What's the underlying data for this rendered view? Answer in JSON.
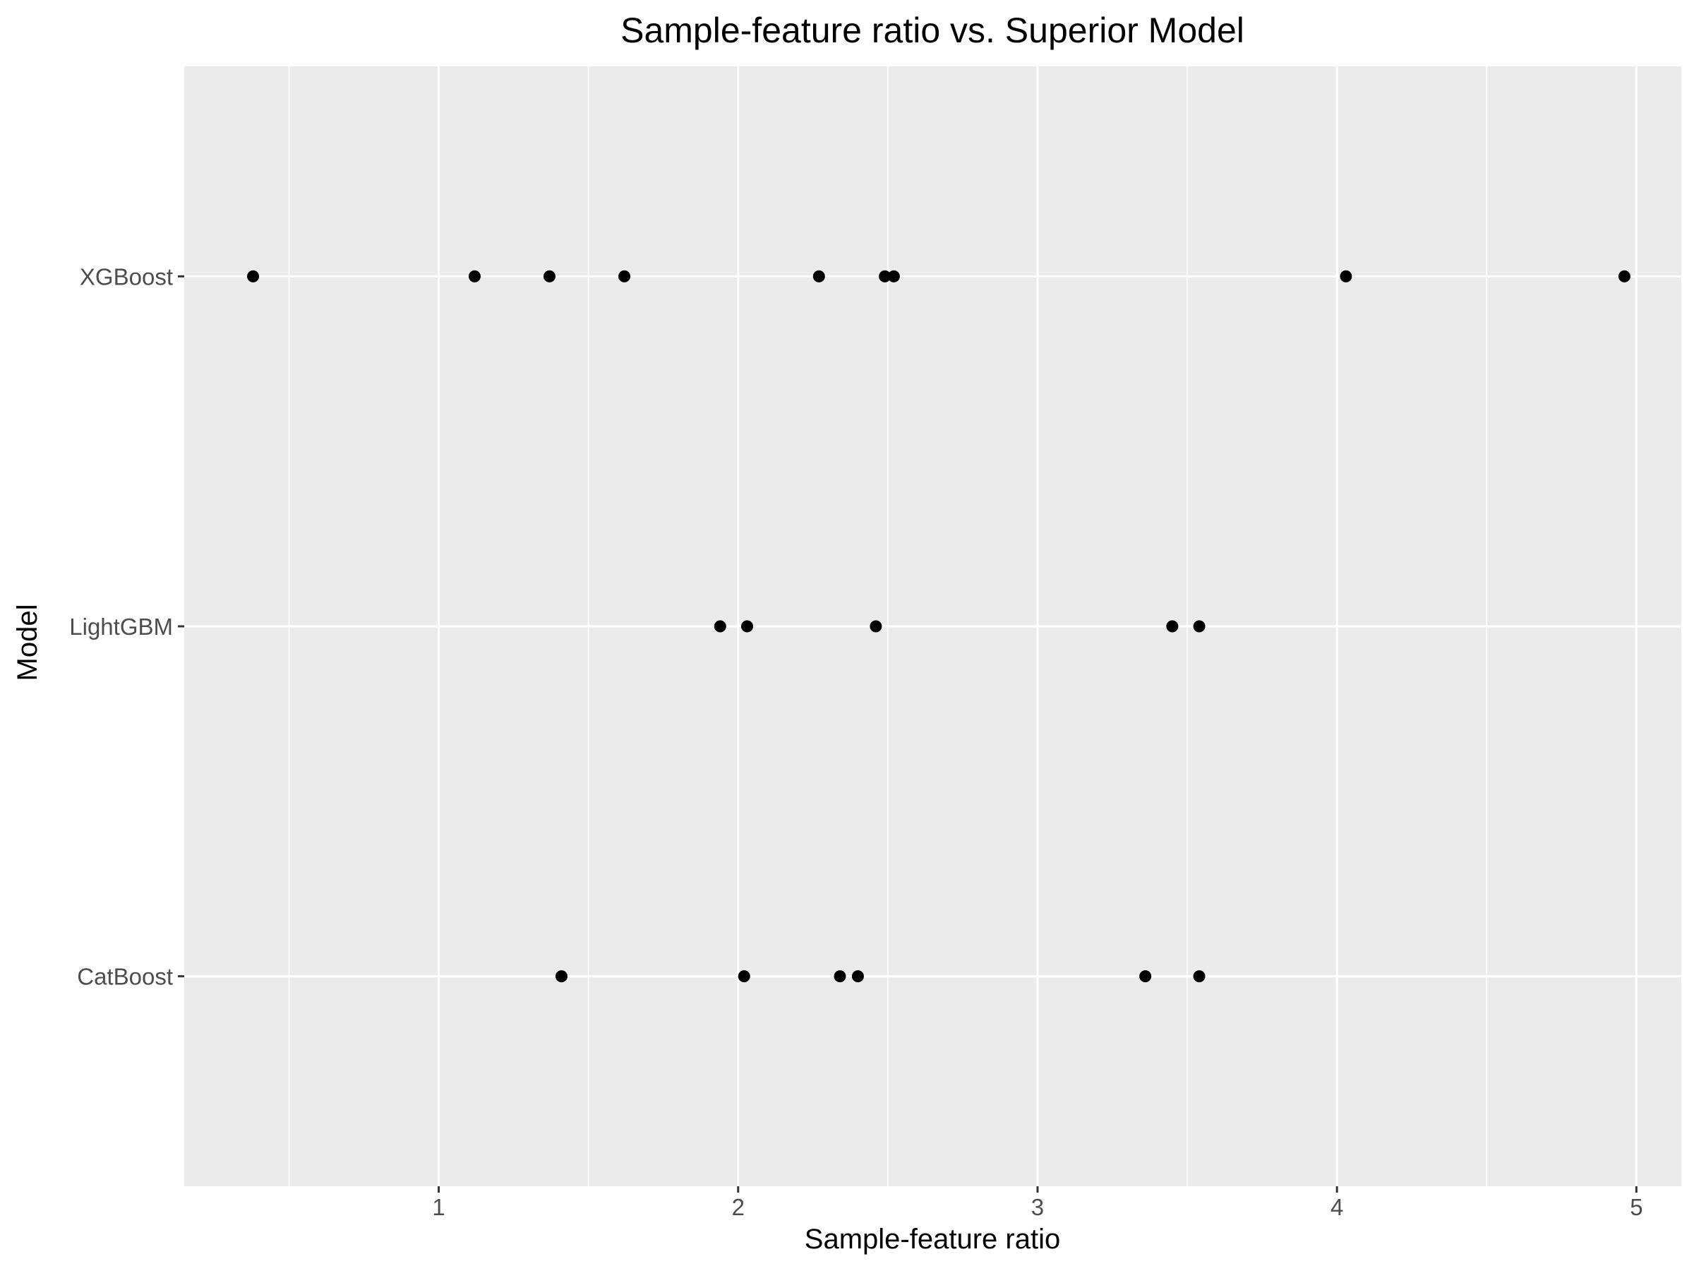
{
  "chart_data": {
    "type": "scatter",
    "title": "Sample-feature ratio vs. Superior Model",
    "xlabel": "Sample-feature ratio",
    "ylabel": "Model",
    "xlim": [
      0.15,
      5.15
    ],
    "x_ticks": [
      1,
      2,
      3,
      4,
      5
    ],
    "x_tick_labels": [
      "1",
      "2",
      "3",
      "4",
      "5"
    ],
    "x_minor_gridlines": [
      0.5,
      1.5,
      2.5,
      3.5,
      4.5
    ],
    "categories": [
      "CatBoost",
      "LightGBM",
      "XGBoost"
    ],
    "grid": true,
    "legend": "none",
    "colors": {
      "panel": "#ebebeb",
      "grid": "#ffffff",
      "point": "#000000",
      "tick": "#333333"
    },
    "series": [
      {
        "name": "XGBoost",
        "x": [
          0.38,
          1.12,
          1.37,
          1.62,
          2.27,
          2.49,
          2.52,
          4.03,
          4.96
        ]
      },
      {
        "name": "LightGBM",
        "x": [
          1.94,
          2.03,
          2.46,
          3.45,
          3.54
        ]
      },
      {
        "name": "CatBoost",
        "x": [
          1.41,
          2.02,
          2.34,
          2.4,
          3.36,
          3.54
        ]
      }
    ]
  }
}
